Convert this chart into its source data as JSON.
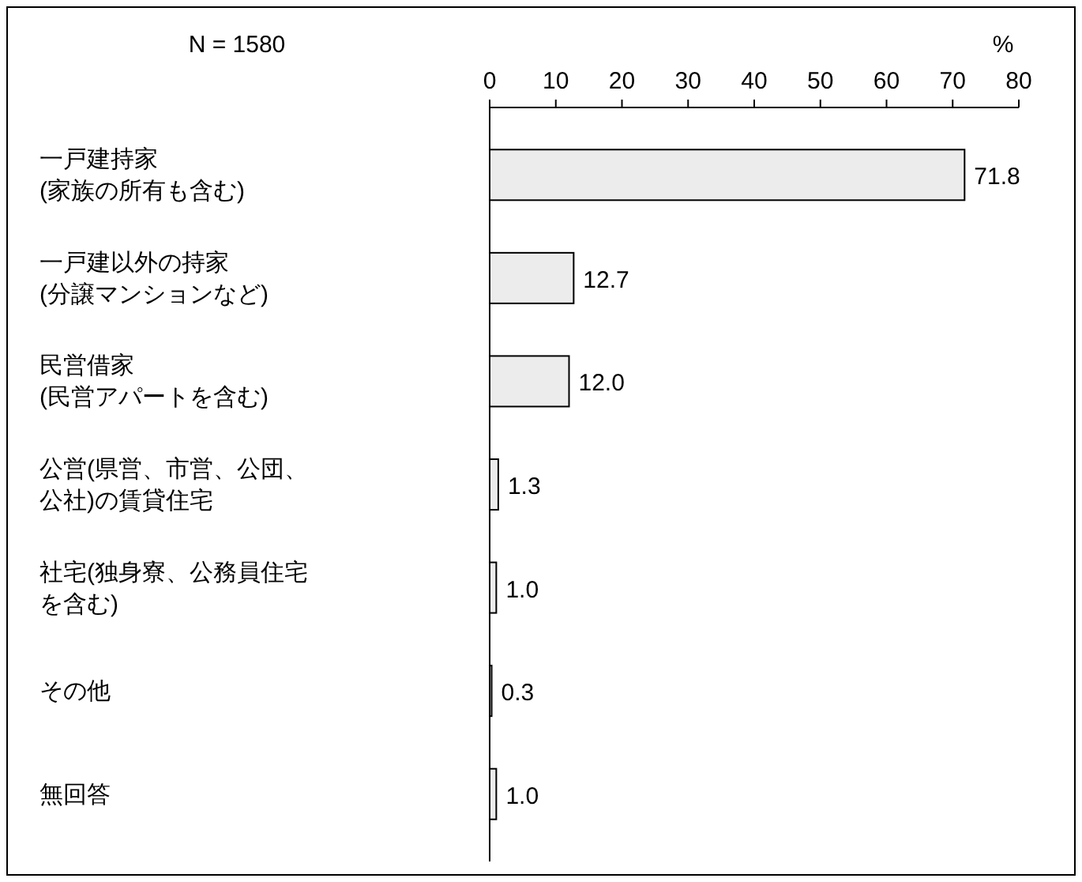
{
  "chart_data": {
    "type": "bar",
    "orientation": "horizontal",
    "xlabel": "%",
    "annotations": [
      "N = 1580"
    ],
    "categories": [
      "一戸建持家(家族の所有も含む)",
      "一戸建以外の持家(分譲マンションなど)",
      "民営借家(民営アパートを含む)",
      "公営(県営、市営、公団、公社)の賃貸住宅",
      "社宅(独身寮、公務員住宅を含む)",
      "その他",
      "無回答"
    ],
    "values": [
      71.8,
      12.7,
      12.0,
      1.3,
      1.0,
      0.3,
      1.0
    ],
    "value_labels": [
      "71.8",
      "12.7",
      "12.0",
      "1.3",
      "1.0",
      "0.3",
      "1.0"
    ],
    "color": "#ececec",
    "x2lim": [
      0,
      80
    ],
    "x2ticks": [
      0,
      10,
      20,
      30,
      40,
      50,
      60,
      70,
      80
    ]
  }
}
